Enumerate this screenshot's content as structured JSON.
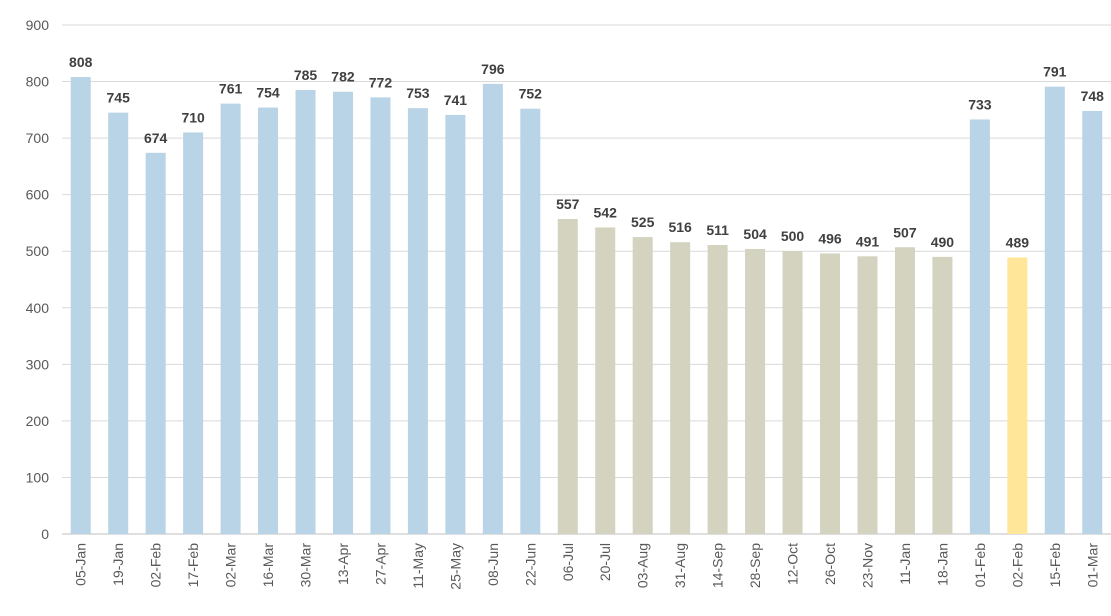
{
  "chart_data": {
    "type": "bar",
    "title": "",
    "xlabel": "",
    "ylabel": "",
    "ylim": [
      0,
      900
    ],
    "yticks": [
      0,
      100,
      200,
      300,
      400,
      500,
      600,
      700,
      800,
      900
    ],
    "grid": true,
    "legend": "none",
    "categories": [
      "05-Jan",
      "19-Jan",
      "02-Feb",
      "17-Feb",
      "02-Mar",
      "16-Mar",
      "30-Mar",
      "13-Apr",
      "27-Apr",
      "11-May",
      "25-May",
      "08-Jun",
      "22-Jun",
      "06-Jul",
      "20-Jul",
      "03-Aug",
      "31-Aug",
      "14-Sep",
      "28-Sep",
      "12-Oct",
      "26-Oct",
      "23-Nov",
      "11-Jan",
      "18-Jan",
      "01-Feb",
      "02-Feb",
      "15-Feb",
      "01-Mar"
    ],
    "values": [
      808,
      745,
      674,
      710,
      761,
      754,
      785,
      782,
      772,
      753,
      741,
      796,
      752,
      557,
      542,
      525,
      516,
      511,
      504,
      500,
      496,
      491,
      507,
      490,
      733,
      489,
      791,
      748
    ],
    "bar_color_keys": [
      "blue",
      "blue",
      "blue",
      "blue",
      "blue",
      "blue",
      "blue",
      "blue",
      "blue",
      "blue",
      "blue",
      "blue",
      "blue",
      "khaki",
      "khaki",
      "khaki",
      "khaki",
      "khaki",
      "khaki",
      "khaki",
      "khaki",
      "khaki",
      "khaki",
      "khaki",
      "blue",
      "yellow",
      "blue",
      "blue"
    ],
    "colors": {
      "blue": "#b8d4e6",
      "khaki": "#d3d3bf",
      "yellow": "#ffe699",
      "grid": "#d9d9d9",
      "axis_text": "#595959",
      "data_label": "#404040"
    }
  }
}
